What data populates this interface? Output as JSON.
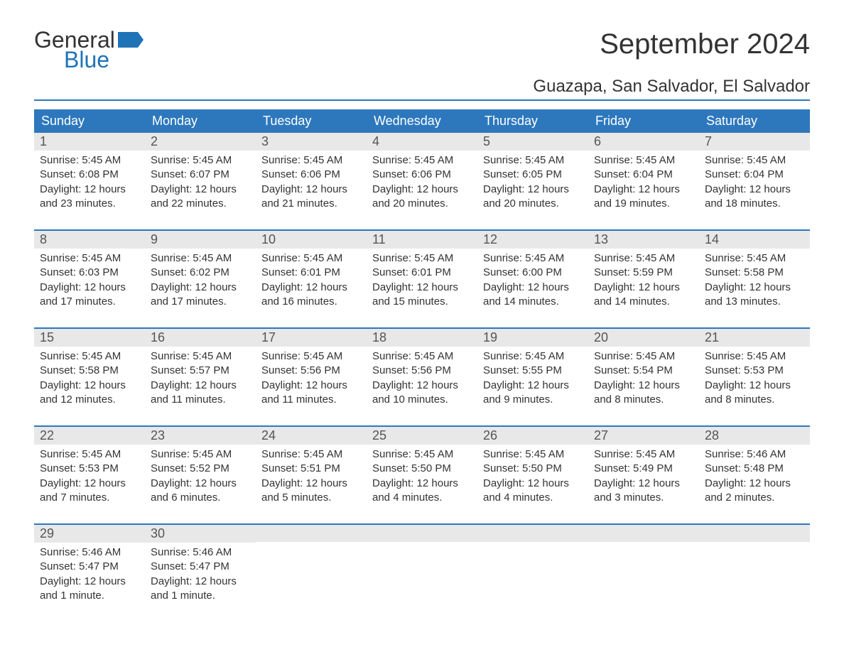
{
  "logo": {
    "line1": "General",
    "line2": "Blue",
    "flag_color": "#1f73b7"
  },
  "title": "September 2024",
  "location": "Guazapa, San Salvador, El Salvador",
  "colors": {
    "header_bg": "#2d78bd",
    "header_text": "#ffffff",
    "daynum_bg": "#e8e8e8",
    "daynum_text": "#555555",
    "divider": "#2d78bd",
    "body_text": "#333333",
    "background": "#ffffff"
  },
  "weekdays": [
    "Sunday",
    "Monday",
    "Tuesday",
    "Wednesday",
    "Thursday",
    "Friday",
    "Saturday"
  ],
  "weeks": [
    [
      {
        "n": "1",
        "sunrise": "Sunrise: 5:45 AM",
        "sunset": "Sunset: 6:08 PM",
        "daylight": "Daylight: 12 hours and 23 minutes."
      },
      {
        "n": "2",
        "sunrise": "Sunrise: 5:45 AM",
        "sunset": "Sunset: 6:07 PM",
        "daylight": "Daylight: 12 hours and 22 minutes."
      },
      {
        "n": "3",
        "sunrise": "Sunrise: 5:45 AM",
        "sunset": "Sunset: 6:06 PM",
        "daylight": "Daylight: 12 hours and 21 minutes."
      },
      {
        "n": "4",
        "sunrise": "Sunrise: 5:45 AM",
        "sunset": "Sunset: 6:06 PM",
        "daylight": "Daylight: 12 hours and 20 minutes."
      },
      {
        "n": "5",
        "sunrise": "Sunrise: 5:45 AM",
        "sunset": "Sunset: 6:05 PM",
        "daylight": "Daylight: 12 hours and 20 minutes."
      },
      {
        "n": "6",
        "sunrise": "Sunrise: 5:45 AM",
        "sunset": "Sunset: 6:04 PM",
        "daylight": "Daylight: 12 hours and 19 minutes."
      },
      {
        "n": "7",
        "sunrise": "Sunrise: 5:45 AM",
        "sunset": "Sunset: 6:04 PM",
        "daylight": "Daylight: 12 hours and 18 minutes."
      }
    ],
    [
      {
        "n": "8",
        "sunrise": "Sunrise: 5:45 AM",
        "sunset": "Sunset: 6:03 PM",
        "daylight": "Daylight: 12 hours and 17 minutes."
      },
      {
        "n": "9",
        "sunrise": "Sunrise: 5:45 AM",
        "sunset": "Sunset: 6:02 PM",
        "daylight": "Daylight: 12 hours and 17 minutes."
      },
      {
        "n": "10",
        "sunrise": "Sunrise: 5:45 AM",
        "sunset": "Sunset: 6:01 PM",
        "daylight": "Daylight: 12 hours and 16 minutes."
      },
      {
        "n": "11",
        "sunrise": "Sunrise: 5:45 AM",
        "sunset": "Sunset: 6:01 PM",
        "daylight": "Daylight: 12 hours and 15 minutes."
      },
      {
        "n": "12",
        "sunrise": "Sunrise: 5:45 AM",
        "sunset": "Sunset: 6:00 PM",
        "daylight": "Daylight: 12 hours and 14 minutes."
      },
      {
        "n": "13",
        "sunrise": "Sunrise: 5:45 AM",
        "sunset": "Sunset: 5:59 PM",
        "daylight": "Daylight: 12 hours and 14 minutes."
      },
      {
        "n": "14",
        "sunrise": "Sunrise: 5:45 AM",
        "sunset": "Sunset: 5:58 PM",
        "daylight": "Daylight: 12 hours and 13 minutes."
      }
    ],
    [
      {
        "n": "15",
        "sunrise": "Sunrise: 5:45 AM",
        "sunset": "Sunset: 5:58 PM",
        "daylight": "Daylight: 12 hours and 12 minutes."
      },
      {
        "n": "16",
        "sunrise": "Sunrise: 5:45 AM",
        "sunset": "Sunset: 5:57 PM",
        "daylight": "Daylight: 12 hours and 11 minutes."
      },
      {
        "n": "17",
        "sunrise": "Sunrise: 5:45 AM",
        "sunset": "Sunset: 5:56 PM",
        "daylight": "Daylight: 12 hours and 11 minutes."
      },
      {
        "n": "18",
        "sunrise": "Sunrise: 5:45 AM",
        "sunset": "Sunset: 5:56 PM",
        "daylight": "Daylight: 12 hours and 10 minutes."
      },
      {
        "n": "19",
        "sunrise": "Sunrise: 5:45 AM",
        "sunset": "Sunset: 5:55 PM",
        "daylight": "Daylight: 12 hours and 9 minutes."
      },
      {
        "n": "20",
        "sunrise": "Sunrise: 5:45 AM",
        "sunset": "Sunset: 5:54 PM",
        "daylight": "Daylight: 12 hours and 8 minutes."
      },
      {
        "n": "21",
        "sunrise": "Sunrise: 5:45 AM",
        "sunset": "Sunset: 5:53 PM",
        "daylight": "Daylight: 12 hours and 8 minutes."
      }
    ],
    [
      {
        "n": "22",
        "sunrise": "Sunrise: 5:45 AM",
        "sunset": "Sunset: 5:53 PM",
        "daylight": "Daylight: 12 hours and 7 minutes."
      },
      {
        "n": "23",
        "sunrise": "Sunrise: 5:45 AM",
        "sunset": "Sunset: 5:52 PM",
        "daylight": "Daylight: 12 hours and 6 minutes."
      },
      {
        "n": "24",
        "sunrise": "Sunrise: 5:45 AM",
        "sunset": "Sunset: 5:51 PM",
        "daylight": "Daylight: 12 hours and 5 minutes."
      },
      {
        "n": "25",
        "sunrise": "Sunrise: 5:45 AM",
        "sunset": "Sunset: 5:50 PM",
        "daylight": "Daylight: 12 hours and 4 minutes."
      },
      {
        "n": "26",
        "sunrise": "Sunrise: 5:45 AM",
        "sunset": "Sunset: 5:50 PM",
        "daylight": "Daylight: 12 hours and 4 minutes."
      },
      {
        "n": "27",
        "sunrise": "Sunrise: 5:45 AM",
        "sunset": "Sunset: 5:49 PM",
        "daylight": "Daylight: 12 hours and 3 minutes."
      },
      {
        "n": "28",
        "sunrise": "Sunrise: 5:46 AM",
        "sunset": "Sunset: 5:48 PM",
        "daylight": "Daylight: 12 hours and 2 minutes."
      }
    ],
    [
      {
        "n": "29",
        "sunrise": "Sunrise: 5:46 AM",
        "sunset": "Sunset: 5:47 PM",
        "daylight": "Daylight: 12 hours and 1 minute."
      },
      {
        "n": "30",
        "sunrise": "Sunrise: 5:46 AM",
        "sunset": "Sunset: 5:47 PM",
        "daylight": "Daylight: 12 hours and 1 minute."
      },
      null,
      null,
      null,
      null,
      null
    ]
  ]
}
